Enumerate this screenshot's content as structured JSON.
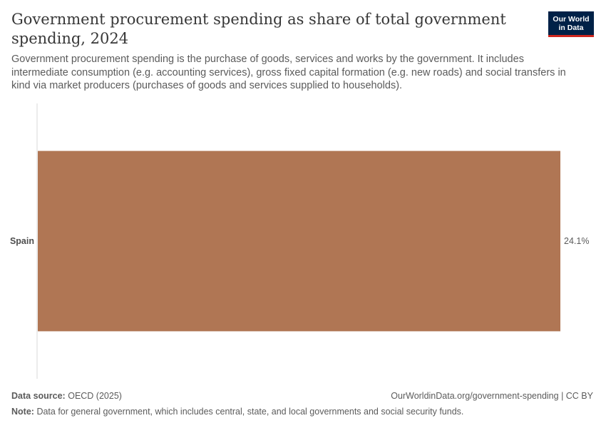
{
  "header": {
    "title": "Government procurement spending as share of total government spending, 2024",
    "subtitle": "Government procurement spending is the purchase of goods, services and works by the government. It includes intermediate consumption (e.g. accounting services), gross fixed capital formation (e.g. new roads) and social transfers in kind via market producers (purchases of goods and services supplied to households).",
    "logo_line1": "Our World",
    "logo_line2": "in Data"
  },
  "chart_data": {
    "type": "bar",
    "orientation": "horizontal",
    "categories": [
      "Spain"
    ],
    "values": [
      24.1
    ],
    "value_labels": [
      "24.1%"
    ],
    "bar_color": "#b07654",
    "xlim": [
      0,
      24.1
    ]
  },
  "footer": {
    "source_label": "Data source:",
    "source_value": "OECD (2025)",
    "link_text": "OurWorldinData.org/government-spending | CC BY",
    "note_label": "Note:",
    "note_value": "Data for general government, which includes central, state, and local governments and social security funds."
  }
}
